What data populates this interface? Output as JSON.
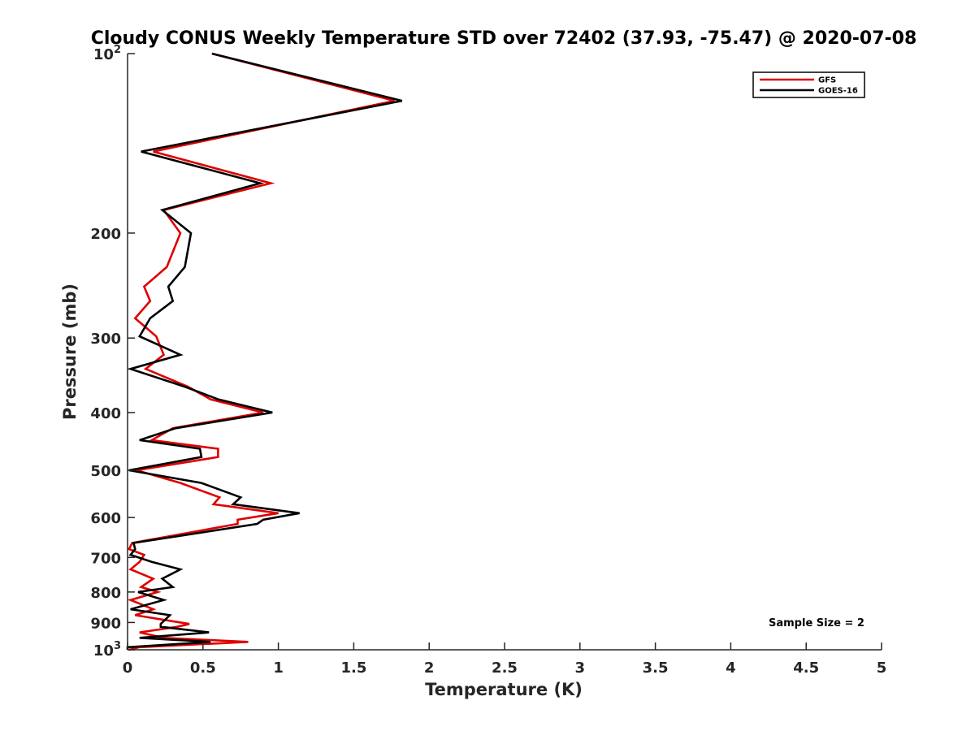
{
  "chart_data": {
    "type": "line",
    "title": "Cloudy CONUS Weekly Temperature STD over 72402 (37.93, -75.47) @ 2020-07-08",
    "xlabel": "Temperature (K)",
    "ylabel": "Pressure (mb)",
    "xlim": [
      0,
      5
    ],
    "ylim": [
      100,
      1000
    ],
    "y_scale": "log",
    "y_reversed": true,
    "x_ticks": [
      "0",
      "0.5",
      "1",
      "1.5",
      "2",
      "2.5",
      "3",
      "3.5",
      "4",
      "4.5",
      "5"
    ],
    "y_ticks": [
      {
        "value": 100,
        "base": "10",
        "exp": "2"
      },
      {
        "value": 200,
        "label": "200"
      },
      {
        "value": 300,
        "label": "300"
      },
      {
        "value": 400,
        "label": "400"
      },
      {
        "value": 500,
        "label": "500"
      },
      {
        "value": 600,
        "label": "600"
      },
      {
        "value": 700,
        "label": "700"
      },
      {
        "value": 800,
        "label": "800"
      },
      {
        "value": 900,
        "label": "900"
      },
      {
        "value": 1000,
        "base": "10",
        "exp": "3"
      }
    ],
    "grid": false,
    "legend_position": "top-right",
    "annotation": "Sample Size = 2",
    "series": [
      {
        "name": "GFS",
        "color": "#e00000",
        "points": [
          [
            0.56,
            100
          ],
          [
            1.77,
            120
          ],
          [
            0.17,
            146
          ],
          [
            0.95,
            165
          ],
          [
            0.24,
            183
          ],
          [
            0.35,
            200
          ],
          [
            0.26,
            228
          ],
          [
            0.11,
            246
          ],
          [
            0.15,
            260
          ],
          [
            0.05,
            278
          ],
          [
            0.19,
            298
          ],
          [
            0.24,
            320
          ],
          [
            0.12,
            338
          ],
          [
            0.4,
            362
          ],
          [
            0.55,
            380
          ],
          [
            0.9,
            400
          ],
          [
            0.3,
            425
          ],
          [
            0.16,
            445
          ],
          [
            0.6,
            460
          ],
          [
            0.6,
            475
          ],
          [
            0.06,
            500
          ],
          [
            0.35,
            525
          ],
          [
            0.61,
            555
          ],
          [
            0.57,
            570
          ],
          [
            1.0,
            590
          ],
          [
            0.73,
            605
          ],
          [
            0.73,
            615
          ],
          [
            0.03,
            662
          ],
          [
            0.01,
            678
          ],
          [
            0.11,
            693
          ],
          [
            0.08,
            712
          ],
          [
            0.02,
            733
          ],
          [
            0.17,
            760
          ],
          [
            0.09,
            785
          ],
          [
            0.2,
            800
          ],
          [
            0.02,
            825
          ],
          [
            0.17,
            855
          ],
          [
            0.05,
            875
          ],
          [
            0.41,
            905
          ],
          [
            0.33,
            915
          ],
          [
            0.08,
            935
          ],
          [
            0.24,
            955
          ],
          [
            0.8,
            970
          ],
          [
            0.08,
            990
          ],
          [
            0.01,
            1000
          ]
        ]
      },
      {
        "name": "GOES-16",
        "color": "#000000",
        "points": [
          [
            0.56,
            100
          ],
          [
            1.82,
            120
          ],
          [
            0.09,
            146
          ],
          [
            0.88,
            165
          ],
          [
            0.23,
            183
          ],
          [
            0.42,
            200
          ],
          [
            0.38,
            228
          ],
          [
            0.27,
            246
          ],
          [
            0.3,
            260
          ],
          [
            0.15,
            278
          ],
          [
            0.08,
            298
          ],
          [
            0.35,
            320
          ],
          [
            0.02,
            338
          ],
          [
            0.38,
            362
          ],
          [
            0.6,
            380
          ],
          [
            0.96,
            400
          ],
          [
            0.32,
            425
          ],
          [
            0.08,
            445
          ],
          [
            0.48,
            460
          ],
          [
            0.49,
            475
          ],
          [
            0.01,
            500
          ],
          [
            0.49,
            525
          ],
          [
            0.75,
            555
          ],
          [
            0.7,
            570
          ],
          [
            1.14,
            590
          ],
          [
            0.9,
            605
          ],
          [
            0.86,
            615
          ],
          [
            0.04,
            662
          ],
          [
            0.05,
            678
          ],
          [
            0.02,
            693
          ],
          [
            0.16,
            712
          ],
          [
            0.35,
            733
          ],
          [
            0.23,
            760
          ],
          [
            0.3,
            785
          ],
          [
            0.07,
            800
          ],
          [
            0.24,
            825
          ],
          [
            0.02,
            855
          ],
          [
            0.28,
            875
          ],
          [
            0.22,
            905
          ],
          [
            0.22,
            915
          ],
          [
            0.54,
            935
          ],
          [
            0.08,
            955
          ],
          [
            0.55,
            970
          ],
          [
            0.0,
            990
          ],
          [
            0.0,
            1000
          ]
        ]
      }
    ]
  }
}
